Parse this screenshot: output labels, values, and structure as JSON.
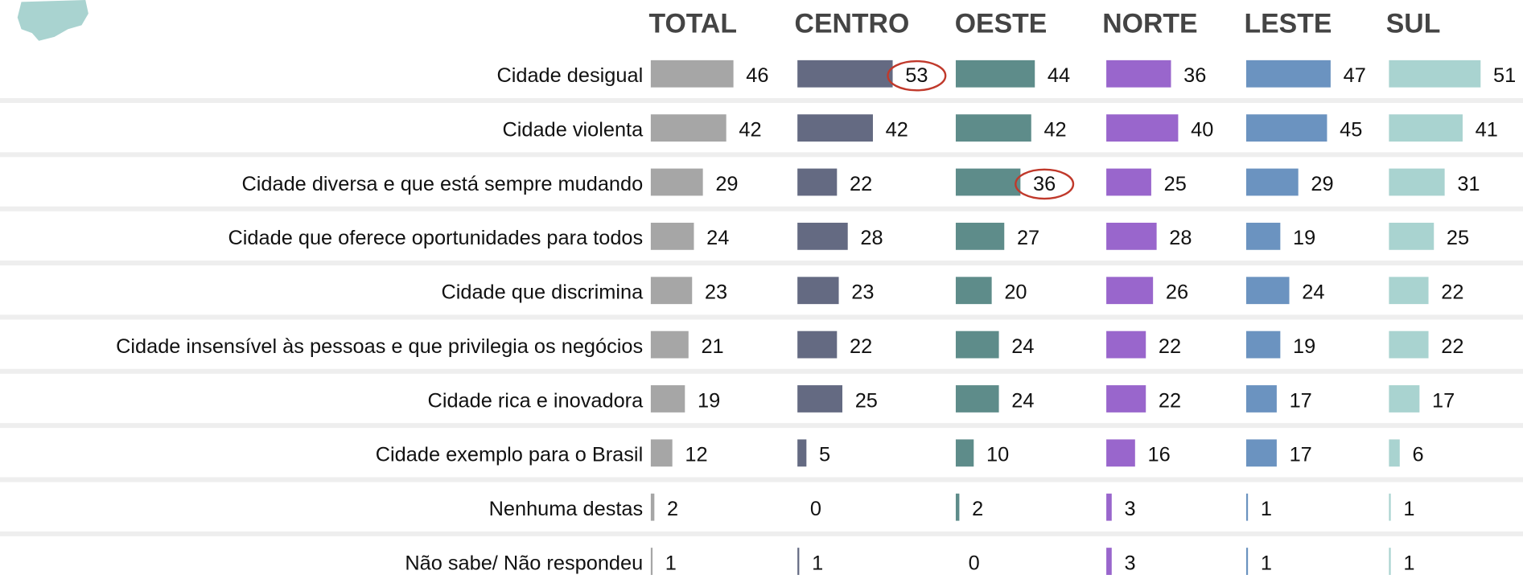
{
  "chart_data": {
    "type": "bar",
    "categories": [
      "Cidade desigual",
      "Cidade violenta",
      "Cidade diversa e que está sempre mudando",
      "Cidade que oferece oportunidades para todos",
      "Cidade que discrimina",
      "Cidade insensível às pessoas e que privilegia os negócios",
      "Cidade rica e inovadora",
      "Cidade exemplo para o Brasil",
      "Nenhuma destas",
      "Não sabe/ Não respondeu"
    ],
    "series": [
      {
        "name": "TOTAL",
        "color": "#a6a6a6",
        "values": [
          46,
          42,
          29,
          24,
          23,
          21,
          19,
          12,
          2,
          1
        ]
      },
      {
        "name": "CENTRO",
        "color": "#646a82",
        "values": [
          53,
          42,
          22,
          28,
          23,
          22,
          25,
          5,
          0,
          1
        ],
        "circled": [
          true,
          false,
          false,
          false,
          false,
          false,
          false,
          false,
          false,
          false
        ]
      },
      {
        "name": "OESTE",
        "color": "#5e8c8a",
        "values": [
          44,
          42,
          36,
          27,
          20,
          24,
          24,
          10,
          2,
          0
        ],
        "circled": [
          false,
          false,
          true,
          false,
          false,
          false,
          false,
          false,
          false,
          false
        ]
      },
      {
        "name": "NORTE",
        "color": "#9966cc",
        "values": [
          36,
          40,
          25,
          28,
          26,
          22,
          22,
          16,
          3,
          3
        ]
      },
      {
        "name": "LESTE",
        "color": "#6b93c0",
        "values": [
          47,
          45,
          29,
          19,
          24,
          19,
          17,
          17,
          1,
          1
        ]
      },
      {
        "name": "SUL",
        "color": "#a9d3d0",
        "values": [
          51,
          41,
          31,
          25,
          22,
          22,
          17,
          6,
          1,
          1
        ]
      }
    ]
  }
}
